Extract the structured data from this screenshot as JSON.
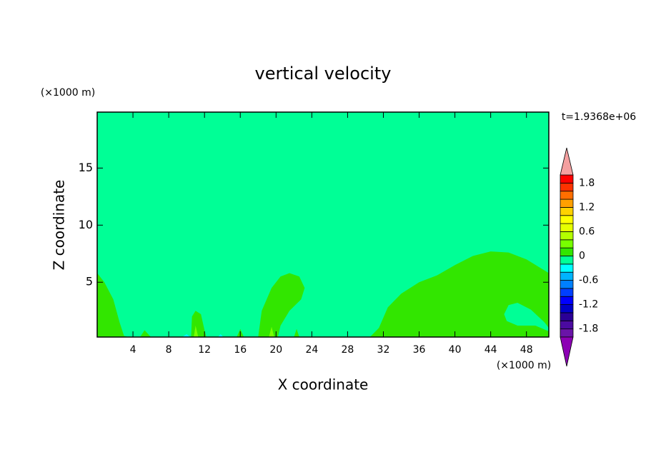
{
  "chart_data": {
    "type": "contour",
    "title": "vertical velocity",
    "xlabel": "X coordinate",
    "ylabel": "Z coordinate",
    "x_unit": "(×1000 m)",
    "y_unit": "(×1000 m)",
    "time_label": "t=1.9368e+06",
    "xlim": [
      0,
      50.5
    ],
    "ylim": [
      0.2,
      19.9
    ],
    "xticks": [
      4,
      8,
      12,
      16,
      20,
      24,
      28,
      32,
      36,
      40,
      44,
      48
    ],
    "yticks": [
      5,
      10,
      15
    ],
    "levels": [
      -2,
      -1.8,
      -1.6,
      -1.4,
      -1.2,
      -1,
      -0.8,
      -0.6,
      -0.4,
      -0.2,
      0,
      0.2,
      0.4,
      0.6,
      0.8,
      1,
      1.2,
      1.4,
      1.6,
      1.8,
      2
    ],
    "colors": [
      "#8c00b4",
      "#6a14a8",
      "#4b0aa0",
      "#2a0096",
      "#0000c8",
      "#0000ff",
      "#0040ff",
      "#0080ff",
      "#00b4ff",
      "#00ffff",
      "#00ff96",
      "#32e600",
      "#78ff00",
      "#b4ff00",
      "#e6ff00",
      "#ffff00",
      "#ffd200",
      "#ffa000",
      "#ff6e00",
      "#ff3200",
      "#ff0000",
      "#f4a0a0"
    ],
    "colorbar_ticks": [
      1.8,
      1.2,
      0.6,
      0,
      -0.6,
      -1.2,
      -1.8
    ],
    "regions": [
      {
        "low": -0.2,
        "x": [
          0,
          0,
          50.5,
          50.5
        ],
        "z": [
          0.2,
          19.9,
          19.9,
          0.2
        ]
      },
      {
        "low": 0,
        "x": [
          0,
          0,
          0.8,
          1.8,
          2.5,
          3,
          3.5
        ],
        "z": [
          0.2,
          5.8,
          5,
          3.5,
          1.5,
          0.3,
          0.2
        ]
      },
      {
        "low": 0,
        "x": [
          18,
          18.4,
          19.5,
          20.5,
          21.5,
          22.6,
          23.2,
          22.8,
          21.5,
          20.5,
          20.2
        ],
        "z": [
          0.2,
          2.5,
          4.5,
          5.5,
          5.8,
          5.5,
          4.5,
          3.5,
          2.5,
          1.2,
          0.2
        ]
      },
      {
        "low": 0,
        "x": [
          30.5,
          31.5,
          32.5,
          34,
          36,
          38,
          40,
          42,
          44,
          46,
          48,
          50.5,
          50.5
        ],
        "z": [
          0.2,
          1,
          2.8,
          4,
          5,
          5.6,
          6.5,
          7.3,
          7.7,
          7.6,
          7,
          5.8,
          0.2
        ]
      },
      {
        "low": -0.2,
        "x": [
          45.5,
          46,
          47,
          48.5,
          50,
          50.5,
          50.5,
          49,
          47,
          45.8
        ],
        "z": [
          2.2,
          3,
          3.2,
          2.6,
          1.5,
          1,
          0.7,
          1.2,
          1.2,
          1.6
        ]
      },
      {
        "low": 0,
        "x": [
          10.5,
          10.6,
          11,
          11.6,
          12,
          12.2
        ],
        "z": [
          0.2,
          2,
          2.5,
          2.2,
          0.8,
          0.2
        ]
      },
      {
        "low": 0.2,
        "x": [
          10.8,
          11,
          11.3
        ],
        "z": [
          0.2,
          1.2,
          0.2
        ]
      },
      {
        "low": 0,
        "x": [
          4.8,
          5.3,
          6
        ],
        "z": [
          0.2,
          0.8,
          0.2
        ]
      },
      {
        "low": 0,
        "x": [
          15.6,
          16,
          16.4
        ],
        "z": [
          0.2,
          0.9,
          0.2
        ]
      },
      {
        "low": 0,
        "x": [
          22,
          22.3,
          22.6
        ],
        "z": [
          0.2,
          0.9,
          0.2
        ]
      },
      {
        "low": 0.2,
        "x": [
          19.2,
          19.5,
          19.8
        ],
        "z": [
          0.2,
          1.1,
          0.2
        ]
      },
      {
        "low": -0.4,
        "x": [
          9.5,
          10,
          10.4
        ],
        "z": [
          0.2,
          0.45,
          0.2
        ]
      },
      {
        "low": -0.4,
        "x": [
          13.5,
          13.8,
          14.1
        ],
        "z": [
          0.2,
          0.45,
          0.2
        ]
      }
    ]
  }
}
